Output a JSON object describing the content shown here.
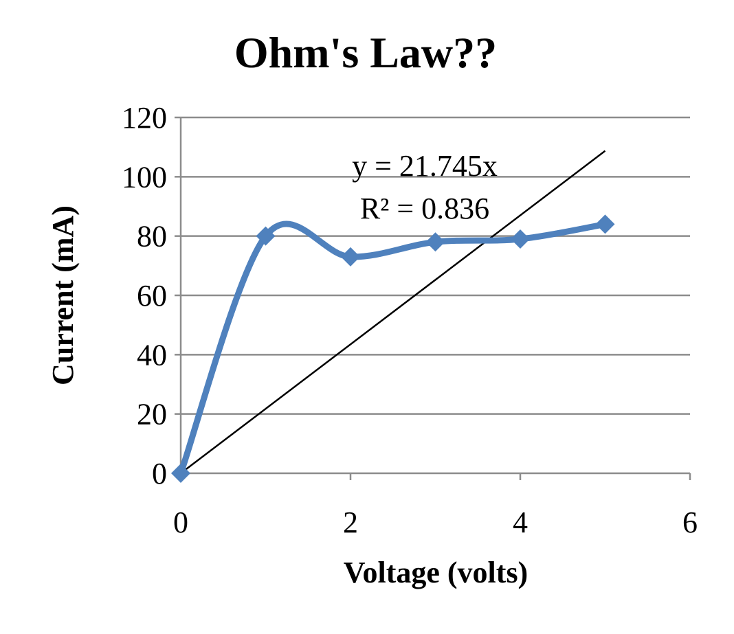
{
  "chart_data": {
    "type": "line",
    "title": "Ohm's Law??",
    "xlabel": "Voltage (volts)",
    "ylabel": "Current (mA)",
    "xlim": [
      0,
      6
    ],
    "ylim": [
      0,
      120
    ],
    "x_ticks": [
      "0",
      "2",
      "4",
      "6"
    ],
    "y_ticks": [
      "0",
      "20",
      "40",
      "60",
      "80",
      "100",
      "120"
    ],
    "grid": "horizontal",
    "smoothed": true,
    "series": [
      {
        "x": [
          0,
          1,
          2,
          3,
          4,
          5
        ],
        "values": [
          0,
          80,
          73,
          78,
          79,
          84
        ],
        "marker": "diamond",
        "color": "#4F81BD"
      }
    ],
    "trendline": {
      "type": "linear-through-origin",
      "slope": 21.745,
      "x_range": [
        0,
        5
      ],
      "color": "#000000",
      "equation": "y = 21.745x",
      "r_squared": "R² = 0.836"
    }
  }
}
